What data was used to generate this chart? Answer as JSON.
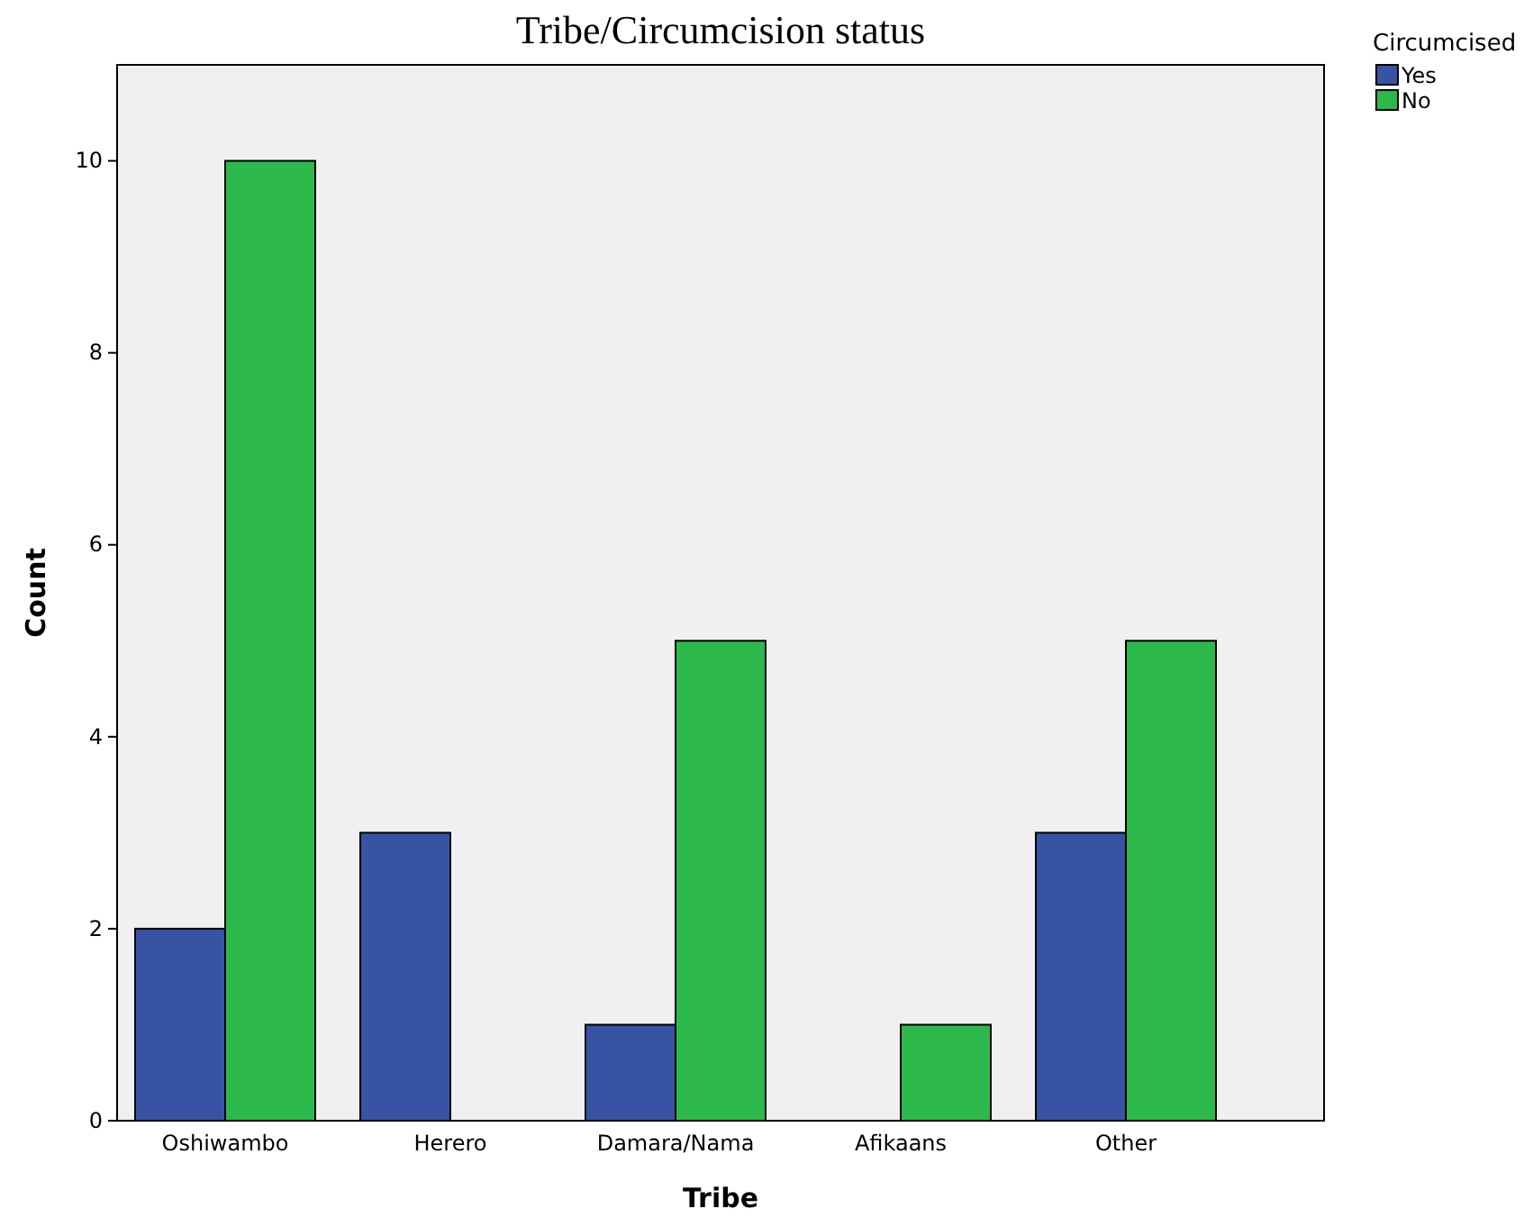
{
  "chart_data": {
    "type": "bar",
    "title": "Tribe/Circumcision status",
    "xlabel": "Tribe",
    "ylabel": "Count",
    "legend_title": "Circumcised",
    "legend": "top right",
    "categories": [
      "Oshiwambo",
      "Herero",
      "Damara/Nama",
      "Afikaans",
      "Other"
    ],
    "series": [
      {
        "name": "Yes",
        "color": "#3953a4",
        "values": [
          2,
          3,
          1,
          0,
          3
        ]
      },
      {
        "name": "No",
        "color": "#2db84b",
        "values": [
          10,
          0,
          5,
          1,
          5
        ]
      }
    ],
    "ylim": [
      0,
      11
    ],
    "yticks": [
      0,
      2,
      4,
      6,
      8,
      10
    ],
    "grid": false
  }
}
